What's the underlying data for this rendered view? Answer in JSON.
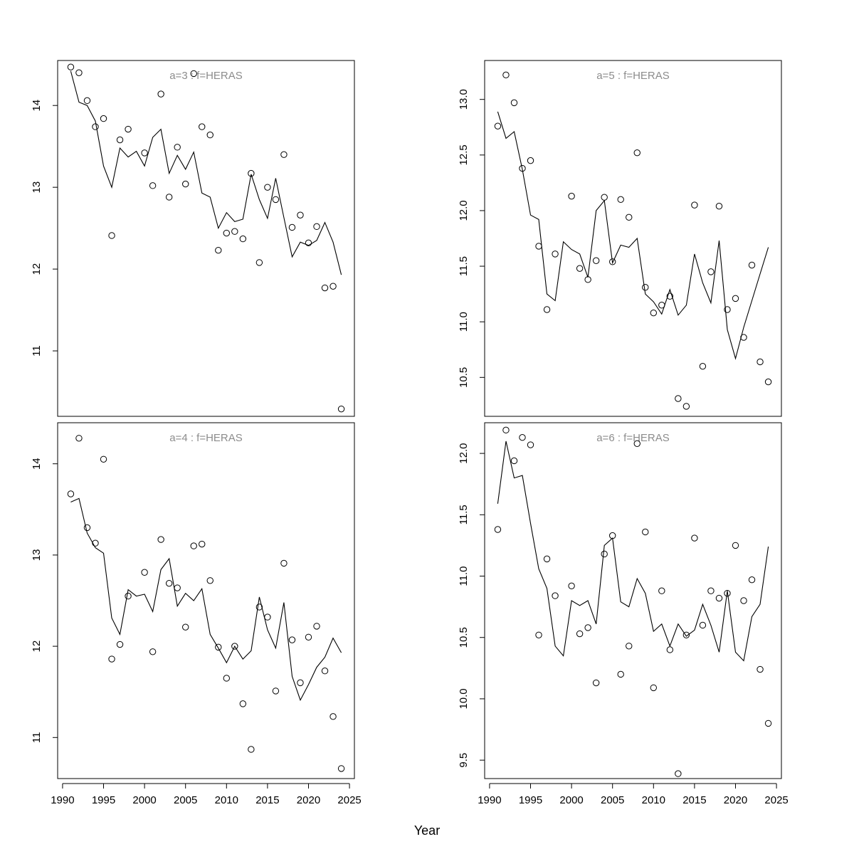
{
  "figure": {
    "xlabel": "Year"
  },
  "chart_data": [
    {
      "type": "scatter",
      "title": "a=3  :  f=HERAS",
      "x_ticks": [
        1990,
        1995,
        2000,
        2005,
        2010,
        2015,
        2020,
        2025
      ],
      "y_ticks": [
        11,
        12,
        13,
        14
      ],
      "xlim": [
        1989.4,
        2025.6
      ],
      "ylim": [
        10.2,
        14.55
      ],
      "series": [
        {
          "style": "points",
          "x": [
            1991,
            1992,
            1993,
            1994,
            1995,
            1996,
            1997,
            1998,
            2000,
            2001,
            2002,
            2003,
            2004,
            2005,
            2006,
            2007,
            2008,
            2009,
            2010,
            2011,
            2012,
            2013,
            2014,
            2015,
            2016,
            2017,
            2018,
            2019,
            2020,
            2021,
            2022,
            2023,
            2024
          ],
          "y": [
            14.47,
            14.4,
            14.06,
            13.74,
            13.84,
            12.41,
            13.58,
            13.71,
            13.42,
            13.02,
            14.14,
            12.88,
            13.49,
            13.04,
            14.39,
            13.74,
            13.64,
            12.23,
            12.44,
            12.46,
            12.37,
            13.17,
            12.08,
            13.0,
            12.85,
            13.4,
            12.51,
            12.66,
            12.32,
            12.52,
            11.77,
            11.79,
            10.29
          ]
        },
        {
          "style": "line",
          "x": [
            1991,
            1992,
            1993,
            1994,
            1995,
            1996,
            1997,
            1998,
            1999,
            2000,
            2001,
            2002,
            2003,
            2004,
            2005,
            2006,
            2007,
            2008,
            2009,
            2010,
            2011,
            2012,
            2013,
            2014,
            2015,
            2016,
            2017,
            2018,
            2019,
            2020,
            2021,
            2022,
            2023,
            2024
          ],
          "y": [
            14.42,
            14.04,
            14.0,
            13.81,
            13.26,
            13.0,
            13.48,
            13.37,
            13.44,
            13.26,
            13.61,
            13.71,
            13.17,
            13.39,
            13.22,
            13.43,
            12.93,
            12.88,
            12.5,
            12.69,
            12.58,
            12.61,
            13.16,
            12.85,
            12.62,
            13.11,
            12.63,
            12.15,
            12.33,
            12.29,
            12.35,
            12.57,
            12.33,
            11.93
          ]
        }
      ]
    },
    {
      "type": "scatter",
      "title": "a=5  :  f=HERAS",
      "x_ticks": [
        1990,
        1995,
        2000,
        2005,
        2010,
        2015,
        2020,
        2025
      ],
      "y_ticks": [
        10.5,
        11.0,
        11.5,
        12.0,
        12.5,
        13.0
      ],
      "xlim": [
        1989.4,
        2025.6
      ],
      "ylim": [
        10.15,
        13.35
      ],
      "series": [
        {
          "style": "points",
          "x": [
            1991,
            1992,
            1993,
            1994,
            1995,
            1996,
            1997,
            1998,
            2000,
            2001,
            2002,
            2003,
            2004,
            2005,
            2006,
            2007,
            2008,
            2009,
            2010,
            2011,
            2012,
            2013,
            2014,
            2015,
            2016,
            2017,
            2018,
            2019,
            2020,
            2021,
            2022,
            2023,
            2024
          ],
          "y": [
            12.76,
            13.22,
            12.97,
            12.38,
            12.45,
            11.68,
            11.11,
            11.61,
            12.13,
            11.48,
            11.38,
            11.55,
            12.12,
            11.54,
            12.1,
            11.94,
            12.52,
            11.31,
            11.08,
            11.15,
            11.23,
            10.31,
            10.24,
            12.05,
            10.6,
            11.45,
            12.04,
            11.11,
            11.21,
            10.86,
            11.51,
            10.64,
            10.46
          ]
        },
        {
          "style": "line",
          "x": [
            1991,
            1992,
            1993,
            1994,
            1995,
            1996,
            1997,
            1998,
            1999,
            2000,
            2001,
            2002,
            2003,
            2004,
            2005,
            2006,
            2007,
            2008,
            2009,
            2010,
            2011,
            2012,
            2013,
            2014,
            2015,
            2016,
            2017,
            2018,
            2019,
            2020,
            2021,
            2022,
            2023,
            2024
          ],
          "y": [
            12.89,
            12.65,
            12.71,
            12.37,
            11.96,
            11.92,
            11.25,
            11.19,
            11.72,
            11.65,
            11.61,
            11.4,
            12.0,
            12.09,
            11.53,
            11.69,
            11.67,
            11.75,
            11.25,
            11.18,
            11.07,
            11.29,
            11.06,
            11.15,
            11.61,
            11.35,
            11.17,
            11.73,
            10.93,
            10.67,
            10.95,
            11.19,
            11.43,
            11.67
          ]
        }
      ]
    },
    {
      "type": "scatter",
      "title": "a=4  :  f=HERAS",
      "x_ticks": [
        1990,
        1995,
        2000,
        2005,
        2010,
        2015,
        2020,
        2025
      ],
      "y_ticks": [
        11,
        12,
        13,
        14
      ],
      "xlim": [
        1989.4,
        2025.6
      ],
      "ylim": [
        10.55,
        14.45
      ],
      "series": [
        {
          "style": "points",
          "x": [
            1991,
            1992,
            1993,
            1994,
            1995,
            1996,
            1997,
            1998,
            2000,
            2001,
            2002,
            2003,
            2004,
            2005,
            2006,
            2007,
            2008,
            2009,
            2010,
            2011,
            2012,
            2013,
            2014,
            2015,
            2016,
            2017,
            2018,
            2019,
            2020,
            2021,
            2022,
            2023,
            2024
          ],
          "y": [
            13.67,
            14.28,
            13.3,
            13.13,
            14.05,
            11.86,
            12.02,
            12.55,
            12.81,
            11.94,
            13.17,
            12.69,
            12.64,
            12.21,
            13.1,
            13.12,
            12.72,
            11.99,
            11.65,
            12.0,
            11.37,
            10.87,
            12.43,
            12.32,
            11.51,
            12.91,
            12.07,
            11.6,
            12.1,
            12.22,
            11.73,
            11.23,
            10.66
          ]
        },
        {
          "style": "line",
          "x": [
            1991,
            1992,
            1993,
            1994,
            1995,
            1996,
            1997,
            1998,
            1999,
            2000,
            2001,
            2002,
            2003,
            2004,
            2005,
            2006,
            2007,
            2008,
            2009,
            2010,
            2011,
            2012,
            2013,
            2014,
            2015,
            2016,
            2017,
            2018,
            2019,
            2020,
            2021,
            2022,
            2023,
            2024
          ],
          "y": [
            13.58,
            13.62,
            13.24,
            13.08,
            13.02,
            12.31,
            12.13,
            12.62,
            12.55,
            12.57,
            12.38,
            12.84,
            12.96,
            12.44,
            12.58,
            12.5,
            12.63,
            12.13,
            11.98,
            11.82,
            12.0,
            11.86,
            11.95,
            12.54,
            12.18,
            11.98,
            12.48,
            11.67,
            11.41,
            11.58,
            11.77,
            11.88,
            12.09,
            11.93
          ]
        }
      ]
    },
    {
      "type": "scatter",
      "title": "a=6  :  f=HERAS",
      "x_ticks": [
        1990,
        1995,
        2000,
        2005,
        2010,
        2015,
        2020,
        2025
      ],
      "y_ticks": [
        9.5,
        10.0,
        10.5,
        11.0,
        11.5,
        12.0
      ],
      "xlim": [
        1989.4,
        2025.6
      ],
      "ylim": [
        9.35,
        12.25
      ],
      "series": [
        {
          "style": "points",
          "x": [
            1991,
            1992,
            1993,
            1994,
            1995,
            1996,
            1997,
            1998,
            2000,
            2001,
            2002,
            2003,
            2004,
            2005,
            2006,
            2007,
            2008,
            2009,
            2010,
            2011,
            2012,
            2013,
            2014,
            2015,
            2016,
            2017,
            2018,
            2019,
            2020,
            2021,
            2022,
            2023,
            2024
          ],
          "y": [
            11.38,
            12.19,
            11.94,
            12.13,
            12.07,
            10.52,
            11.14,
            10.84,
            10.92,
            10.53,
            10.58,
            10.13,
            11.18,
            11.33,
            10.2,
            10.43,
            12.08,
            11.36,
            10.09,
            10.88,
            10.4,
            9.39,
            10.52,
            11.31,
            10.6,
            10.88,
            10.82,
            10.86,
            11.25,
            10.8,
            10.97,
            10.24,
            9.8
          ]
        },
        {
          "style": "line",
          "x": [
            1991,
            1992,
            1993,
            1994,
            1995,
            1996,
            1997,
            1998,
            1999,
            2000,
            2001,
            2002,
            2003,
            2004,
            2005,
            2006,
            2007,
            2008,
            2009,
            2010,
            2011,
            2012,
            2013,
            2014,
            2015,
            2016,
            2017,
            2018,
            2019,
            2020,
            2021,
            2022,
            2023,
            2024
          ],
          "y": [
            11.59,
            12.1,
            11.8,
            11.82,
            11.43,
            11.06,
            10.9,
            10.43,
            10.35,
            10.8,
            10.76,
            10.8,
            10.61,
            11.25,
            11.31,
            10.79,
            10.75,
            10.98,
            10.86,
            10.55,
            10.61,
            10.43,
            10.61,
            10.51,
            10.56,
            10.77,
            10.6,
            10.38,
            10.88,
            10.38,
            10.31,
            10.67,
            10.77,
            11.24
          ]
        }
      ]
    }
  ]
}
